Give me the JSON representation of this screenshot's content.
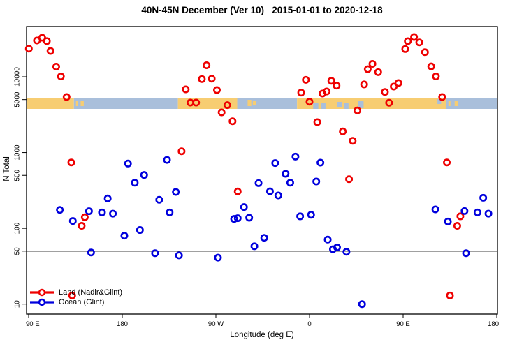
{
  "title": "40N-45N December (Ver 10)   2015-01-01 to 2020-12-18",
  "axes": {
    "x": {
      "label": "Longitude (deg E)",
      "ticks": [
        {
          "lon": 90,
          "label": "90 E"
        },
        {
          "lon": 180,
          "label": "180"
        },
        {
          "lon": 270,
          "label": "90 W"
        },
        {
          "lon": 360,
          "label": "0"
        },
        {
          "lon": 450,
          "label": "90 E"
        },
        {
          "lon": 540,
          "label": "180"
        }
      ]
    },
    "y": {
      "label": "N Total",
      "scale": "log",
      "ticks": [
        {
          "value": 10,
          "label": "10"
        },
        {
          "value": 50,
          "label": "50"
        },
        {
          "value": 100,
          "label": "100"
        },
        {
          "value": 500,
          "label": "500"
        },
        {
          "value": 1000,
          "label": "1000"
        },
        {
          "value": 5000,
          "label": "5000"
        },
        {
          "value": 10000,
          "label": "10000"
        }
      ]
    }
  },
  "reference_line": {
    "value": 50
  },
  "legend": [
    {
      "label": "Land (Nadir&Glint)",
      "color": "#ee0000"
    },
    {
      "label": "Ocean (Glint)",
      "color": "#0000dd"
    }
  ],
  "colors": {
    "land_marker": "#ee0000",
    "ocean_marker": "#0000dd",
    "strip_land": "#f7cd72",
    "strip_ocean": "#a9bfdb",
    "axis": "#000000"
  },
  "map_strip": {
    "segments": [
      {
        "from": 90,
        "to": 133.5,
        "type": "land"
      },
      {
        "from": 133.5,
        "to": 233.5,
        "type": "ocean"
      },
      {
        "from": 233.5,
        "to": 290.5,
        "type": "land"
      },
      {
        "from": 290.5,
        "to": 348,
        "type": "ocean"
      },
      {
        "from": 348,
        "to": 491,
        "type": "land"
      },
      {
        "from": 491,
        "to": 540,
        "type": "ocean"
      }
    ],
    "specks": [
      {
        "from": 135.5,
        "to": 137.5,
        "type": "land",
        "dy": 5,
        "h": 7
      },
      {
        "from": 140,
        "to": 143,
        "type": "land",
        "dy": 4,
        "h": 8
      },
      {
        "from": 300.5,
        "to": 304,
        "type": "land",
        "dy": 3,
        "h": 9
      },
      {
        "from": 305.5,
        "to": 308.5,
        "type": "land",
        "dy": 5,
        "h": 6
      },
      {
        "from": 363.5,
        "to": 368.5,
        "type": "ocean",
        "dy": 7,
        "h": 9
      },
      {
        "from": 371,
        "to": 375.5,
        "type": "ocean",
        "dy": 8,
        "h": 8
      },
      {
        "from": 386.5,
        "to": 391,
        "type": "ocean",
        "dy": 6,
        "h": 8
      },
      {
        "from": 393,
        "to": 397.5,
        "type": "ocean",
        "dy": 7,
        "h": 9
      },
      {
        "from": 406.5,
        "to": 412,
        "type": "ocean",
        "dy": 5,
        "h": 10
      },
      {
        "from": 483,
        "to": 486.5,
        "type": "ocean",
        "dy": 2,
        "h": 7
      },
      {
        "from": 493.5,
        "to": 495.5,
        "type": "land",
        "dy": 5,
        "h": 7
      },
      {
        "from": 499.5,
        "to": 503,
        "type": "land",
        "dy": 4,
        "h": 8
      }
    ]
  },
  "chart_data": {
    "type": "scatter",
    "title": "40N-45N December (Ver 10)   2015-01-01 to 2020-12-18",
    "xlabel": "Longitude (deg E)",
    "ylabel": "N Total",
    "x_range": [
      90,
      540
    ],
    "y_range": [
      7.5,
      46000
    ],
    "y_scale": "log",
    "grid": false,
    "legend_position": "bottom-left",
    "series": [
      {
        "name": "Land (Nadir&Glint)",
        "marker": "open-circle",
        "color": "#ee0000",
        "points": [
          [
            90.2,
            23500
          ],
          [
            98,
            30100
          ],
          [
            103,
            32800
          ],
          [
            107.5,
            29600
          ],
          [
            111,
            21900
          ],
          [
            116.5,
            13600
          ],
          [
            121,
            10100
          ],
          [
            126.5,
            5400
          ],
          [
            131,
            740
          ],
          [
            141,
            108
          ],
          [
            144,
            140
          ],
          [
            131.8,
            13
          ],
          [
            237,
            1040
          ],
          [
            241,
            6830
          ],
          [
            245.5,
            4560
          ],
          [
            251,
            4560
          ],
          [
            256.5,
            9320
          ],
          [
            261,
            14200
          ],
          [
            266,
            9440
          ],
          [
            271,
            6680
          ],
          [
            275.5,
            3390
          ],
          [
            281,
            4220
          ],
          [
            286,
            2590
          ],
          [
            291,
            307
          ],
          [
            352,
            6180
          ],
          [
            356.5,
            9120
          ],
          [
            360,
            4690
          ],
          [
            367.5,
            2520
          ],
          [
            372.5,
            6010
          ],
          [
            376.5,
            6400
          ],
          [
            381,
            8850
          ],
          [
            386,
            7640
          ],
          [
            392,
            1900
          ],
          [
            398,
            445
          ],
          [
            401.5,
            1430
          ],
          [
            406,
            3590
          ],
          [
            412.5,
            7930
          ],
          [
            416,
            12600
          ],
          [
            420.5,
            14800
          ],
          [
            426,
            11500
          ],
          [
            432.5,
            6310
          ],
          [
            436.5,
            4540
          ],
          [
            441,
            7430
          ],
          [
            445.5,
            8260
          ],
          [
            452,
            23200
          ],
          [
            454.5,
            29500
          ],
          [
            460.5,
            33500
          ],
          [
            465.5,
            28400
          ],
          [
            471,
            21100
          ],
          [
            477,
            13700
          ],
          [
            481.5,
            10100
          ],
          [
            487.5,
            5400
          ],
          [
            492,
            740
          ],
          [
            502,
            108
          ],
          [
            505,
            144
          ],
          [
            495,
            13
          ]
        ]
      },
      {
        "name": "Ocean (Glint)",
        "marker": "open-circle",
        "color": "#0000dd",
        "points": [
          [
            120,
            175
          ],
          [
            132.5,
            125
          ],
          [
            148,
            168
          ],
          [
            160.5,
            162
          ],
          [
            166,
            248
          ],
          [
            171,
            156
          ],
          [
            150,
            48
          ],
          [
            182,
            80
          ],
          [
            185.5,
            716
          ],
          [
            192,
            400
          ],
          [
            197,
            95
          ],
          [
            201,
            506
          ],
          [
            211.5,
            47
          ],
          [
            215.5,
            238
          ],
          [
            223,
            800
          ],
          [
            225.5,
            162
          ],
          [
            231.5,
            302
          ],
          [
            234.5,
            44
          ],
          [
            272,
            41
          ],
          [
            287.5,
            133
          ],
          [
            291,
            136
          ],
          [
            297,
            191
          ],
          [
            302,
            138
          ],
          [
            307,
            58
          ],
          [
            311,
            395
          ],
          [
            316.5,
            75
          ],
          [
            322,
            308
          ],
          [
            327,
            726
          ],
          [
            330,
            272
          ],
          [
            337,
            525
          ],
          [
            341.5,
            400
          ],
          [
            346.5,
            885
          ],
          [
            351,
            144
          ],
          [
            361.5,
            151
          ],
          [
            366.5,
            415
          ],
          [
            370.5,
            736
          ],
          [
            377.5,
            71
          ],
          [
            382.5,
            53
          ],
          [
            386.5,
            56
          ],
          [
            395.5,
            49
          ],
          [
            410.5,
            10
          ],
          [
            481,
            178
          ],
          [
            493,
            123
          ],
          [
            509,
            169
          ],
          [
            510.5,
            47
          ],
          [
            521.5,
            162
          ],
          [
            527,
            253
          ],
          [
            532,
            156
          ]
        ]
      }
    ]
  }
}
